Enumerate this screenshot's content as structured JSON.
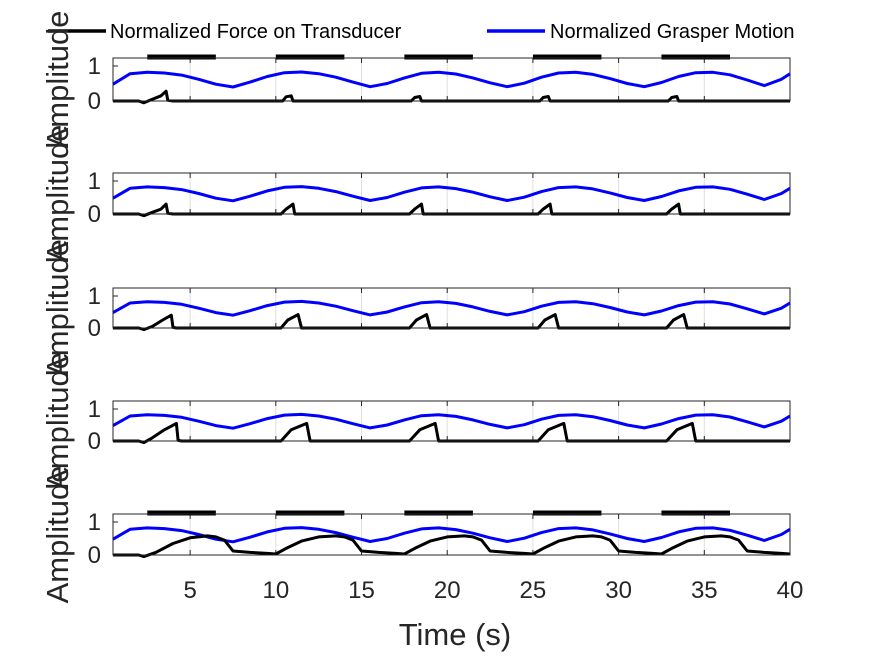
{
  "chart_data": {
    "type": "line",
    "layout": "5 stacked subplots sharing the x axis",
    "xlabel": "Time (s)",
    "xlim": [
      0.5,
      40
    ],
    "xticks": [
      5,
      10,
      15,
      20,
      25,
      30,
      35,
      40
    ],
    "grid": "vertical only",
    "legend": {
      "placement": "top",
      "entries": [
        {
          "label": "Normalized Force on Transducer",
          "color": "#000000"
        },
        {
          "label": "Normalized Grasper Motion",
          "color": "#0000ff"
        }
      ]
    },
    "series_styles": {
      "force": {
        "name": "Normalized Force on Transducer",
        "color": "#000000"
      },
      "motion": {
        "name": "Normalized Grasper Motion",
        "color": "#0000ff"
      }
    },
    "subplots": [
      {
        "ylabel": "Amplitude",
        "ylim": [
          0,
          1
        ],
        "yticks": [
          0,
          1
        ],
        "top_markers": [
          [
            2.5,
            6.5
          ],
          [
            10,
            14
          ],
          [
            17.5,
            21.5
          ],
          [
            25,
            29
          ],
          [
            32.5,
            36.5
          ]
        ],
        "motion_series": {
          "x": [
            0.5,
            1.5,
            2.5,
            3.5,
            4.5,
            5.5,
            6.5,
            7.5,
            8.5,
            9.5,
            10.5,
            11.5,
            12.5,
            13.5,
            14.5,
            15.5,
            16.5,
            17.5,
            18.5,
            19.5,
            20.5,
            21.5,
            22.5,
            23.5,
            24.5,
            25.5,
            26.5,
            27.5,
            28.5,
            29.5,
            30.5,
            31.5,
            32.5,
            33.5,
            34.5,
            35.5,
            36.5,
            37.5,
            38.5,
            39.5,
            40
          ],
          "y": [
            0.48,
            0.78,
            0.82,
            0.8,
            0.74,
            0.62,
            0.48,
            0.4,
            0.54,
            0.7,
            0.81,
            0.83,
            0.78,
            0.68,
            0.54,
            0.41,
            0.5,
            0.66,
            0.79,
            0.82,
            0.77,
            0.66,
            0.52,
            0.41,
            0.51,
            0.68,
            0.8,
            0.82,
            0.76,
            0.64,
            0.5,
            0.41,
            0.53,
            0.7,
            0.81,
            0.82,
            0.75,
            0.6,
            0.44,
            0.62,
            0.78
          ]
        },
        "force_series": {
          "x": [
            0.5,
            2.0,
            2.3,
            2.8,
            3.3,
            3.6,
            3.7,
            4.0,
            10.4,
            10.6,
            10.9,
            11.0,
            11.2,
            17.9,
            18.1,
            18.4,
            18.5,
            18.7,
            25.4,
            25.6,
            25.9,
            26.0,
            26.2,
            32.9,
            33.1,
            33.4,
            33.5,
            33.7,
            40
          ],
          "y": [
            0,
            0,
            -0.05,
            0.05,
            0.15,
            0.28,
            0.02,
            0,
            0,
            0.12,
            0.15,
            0,
            0,
            0,
            0.1,
            0.13,
            0,
            0,
            0,
            0.1,
            0.13,
            0,
            0,
            0,
            0.1,
            0.13,
            0,
            0,
            0
          ]
        }
      },
      {
        "ylabel": "Amplitude",
        "ylim": [
          0,
          1
        ],
        "yticks": [
          0,
          1
        ],
        "top_markers": [],
        "motion_series": {
          "x": [
            0.5,
            1.5,
            2.5,
            3.5,
            4.5,
            5.5,
            6.5,
            7.5,
            8.5,
            9.5,
            10.5,
            11.5,
            12.5,
            13.5,
            14.5,
            15.5,
            16.5,
            17.5,
            18.5,
            19.5,
            20.5,
            21.5,
            22.5,
            23.5,
            24.5,
            25.5,
            26.5,
            27.5,
            28.5,
            29.5,
            30.5,
            31.5,
            32.5,
            33.5,
            34.5,
            35.5,
            36.5,
            37.5,
            38.5,
            39.5,
            40
          ],
          "y": [
            0.48,
            0.78,
            0.82,
            0.8,
            0.74,
            0.62,
            0.48,
            0.4,
            0.54,
            0.7,
            0.81,
            0.83,
            0.78,
            0.68,
            0.54,
            0.41,
            0.5,
            0.66,
            0.79,
            0.82,
            0.77,
            0.66,
            0.52,
            0.41,
            0.51,
            0.68,
            0.8,
            0.82,
            0.76,
            0.64,
            0.5,
            0.41,
            0.53,
            0.7,
            0.81,
            0.82,
            0.75,
            0.6,
            0.44,
            0.62,
            0.78
          ]
        },
        "force_series": {
          "x": [
            0.5,
            2.0,
            2.3,
            2.8,
            3.3,
            3.6,
            3.7,
            4.0,
            10.3,
            10.6,
            11.0,
            11.1,
            11.3,
            17.8,
            18.1,
            18.5,
            18.6,
            18.8,
            25.3,
            25.6,
            26.0,
            26.1,
            26.3,
            32.8,
            33.1,
            33.5,
            33.6,
            33.8,
            40
          ],
          "y": [
            0,
            0,
            -0.05,
            0.05,
            0.15,
            0.3,
            0.02,
            0,
            0,
            0.15,
            0.3,
            0,
            0,
            0,
            0.15,
            0.3,
            0,
            0,
            0,
            0.15,
            0.3,
            0,
            0,
            0,
            0.15,
            0.3,
            0,
            0,
            0
          ]
        }
      },
      {
        "ylabel": "Amplitude",
        "ylim": [
          0,
          1
        ],
        "yticks": [
          0,
          1
        ],
        "top_markers": [],
        "motion_series": {
          "x": [
            0.5,
            1.5,
            2.5,
            3.5,
            4.5,
            5.5,
            6.5,
            7.5,
            8.5,
            9.5,
            10.5,
            11.5,
            12.5,
            13.5,
            14.5,
            15.5,
            16.5,
            17.5,
            18.5,
            19.5,
            20.5,
            21.5,
            22.5,
            23.5,
            24.5,
            25.5,
            26.5,
            27.5,
            28.5,
            29.5,
            30.5,
            31.5,
            32.5,
            33.5,
            34.5,
            35.5,
            36.5,
            37.5,
            38.5,
            39.5,
            40
          ],
          "y": [
            0.48,
            0.78,
            0.82,
            0.8,
            0.74,
            0.62,
            0.48,
            0.4,
            0.54,
            0.7,
            0.81,
            0.83,
            0.78,
            0.68,
            0.54,
            0.41,
            0.5,
            0.66,
            0.79,
            0.82,
            0.77,
            0.66,
            0.52,
            0.41,
            0.51,
            0.68,
            0.8,
            0.82,
            0.76,
            0.64,
            0.5,
            0.41,
            0.53,
            0.7,
            0.81,
            0.82,
            0.75,
            0.6,
            0.44,
            0.62,
            0.78
          ]
        },
        "force_series": {
          "x": [
            0.5,
            2.0,
            2.3,
            2.8,
            3.4,
            3.9,
            4.0,
            4.2,
            10.3,
            10.7,
            11.3,
            11.5,
            11.7,
            17.8,
            18.2,
            18.8,
            19.0,
            19.2,
            25.3,
            25.7,
            26.3,
            26.5,
            26.7,
            32.8,
            33.2,
            33.8,
            34.0,
            34.2,
            40
          ],
          "y": [
            0,
            0,
            -0.05,
            0.05,
            0.25,
            0.4,
            0.02,
            0,
            0,
            0.25,
            0.42,
            0,
            0,
            0,
            0.25,
            0.42,
            0,
            0,
            0,
            0.25,
            0.42,
            0,
            0,
            0,
            0.25,
            0.42,
            0,
            0,
            0
          ]
        }
      },
      {
        "ylabel": "Amplitude",
        "ylim": [
          0,
          1
        ],
        "yticks": [
          0,
          1
        ],
        "top_markers": [],
        "motion_series": {
          "x": [
            0.5,
            1.5,
            2.5,
            3.5,
            4.5,
            5.5,
            6.5,
            7.5,
            8.5,
            9.5,
            10.5,
            11.5,
            12.5,
            13.5,
            14.5,
            15.5,
            16.5,
            17.5,
            18.5,
            19.5,
            20.5,
            21.5,
            22.5,
            23.5,
            24.5,
            25.5,
            26.5,
            27.5,
            28.5,
            29.5,
            30.5,
            31.5,
            32.5,
            33.5,
            34.5,
            35.5,
            36.5,
            37.5,
            38.5,
            39.5,
            40
          ],
          "y": [
            0.48,
            0.78,
            0.82,
            0.8,
            0.74,
            0.62,
            0.48,
            0.4,
            0.54,
            0.7,
            0.81,
            0.83,
            0.78,
            0.68,
            0.54,
            0.41,
            0.5,
            0.66,
            0.79,
            0.82,
            0.77,
            0.66,
            0.52,
            0.41,
            0.51,
            0.68,
            0.8,
            0.82,
            0.76,
            0.64,
            0.5,
            0.41,
            0.53,
            0.7,
            0.81,
            0.82,
            0.75,
            0.6,
            0.44,
            0.62,
            0.78
          ]
        },
        "force_series": {
          "x": [
            0.5,
            2.0,
            2.3,
            2.8,
            3.5,
            4.2,
            4.3,
            4.5,
            10.3,
            10.9,
            11.8,
            12.0,
            12.2,
            17.8,
            18.4,
            19.3,
            19.5,
            19.7,
            25.3,
            25.9,
            26.8,
            27.0,
            27.2,
            32.8,
            33.4,
            34.3,
            34.5,
            34.7,
            40
          ],
          "y": [
            0,
            0,
            -0.05,
            0.1,
            0.35,
            0.55,
            0.02,
            0,
            0,
            0.35,
            0.55,
            0,
            0,
            0,
            0.35,
            0.55,
            0,
            0,
            0,
            0.35,
            0.55,
            0,
            0,
            0,
            0.35,
            0.55,
            0,
            0,
            0
          ]
        }
      },
      {
        "ylabel": "Amplitude",
        "ylim": [
          0,
          1
        ],
        "yticks": [
          0,
          1
        ],
        "top_markers": [
          [
            2.5,
            6.5
          ],
          [
            10,
            14
          ],
          [
            17.5,
            21.5
          ],
          [
            25,
            29
          ],
          [
            32.5,
            36.5
          ]
        ],
        "motion_series": {
          "x": [
            0.5,
            1.5,
            2.5,
            3.5,
            4.5,
            5.5,
            6.5,
            7.5,
            8.5,
            9.5,
            10.5,
            11.5,
            12.5,
            13.5,
            14.5,
            15.5,
            16.5,
            17.5,
            18.5,
            19.5,
            20.5,
            21.5,
            22.5,
            23.5,
            24.5,
            25.5,
            26.5,
            27.5,
            28.5,
            29.5,
            30.5,
            31.5,
            32.5,
            33.5,
            34.5,
            35.5,
            36.5,
            37.5,
            38.5,
            39.5,
            40
          ],
          "y": [
            0.48,
            0.78,
            0.82,
            0.8,
            0.74,
            0.62,
            0.48,
            0.4,
            0.54,
            0.7,
            0.81,
            0.83,
            0.78,
            0.68,
            0.54,
            0.41,
            0.5,
            0.66,
            0.79,
            0.82,
            0.77,
            0.66,
            0.52,
            0.41,
            0.51,
            0.68,
            0.8,
            0.82,
            0.76,
            0.64,
            0.5,
            0.41,
            0.53,
            0.7,
            0.81,
            0.82,
            0.75,
            0.6,
            0.44,
            0.62,
            0.78
          ]
        },
        "force_series": {
          "x": [
            0.5,
            2.0,
            2.3,
            3.0,
            4.0,
            5.0,
            6.0,
            6.5,
            7.0,
            7.5,
            8.5,
            9.5,
            10.0,
            10.6,
            11.5,
            12.5,
            13.5,
            14.0,
            14.5,
            15.0,
            16.0,
            17.0,
            17.5,
            18.1,
            19.0,
            20.0,
            21.0,
            21.5,
            22.0,
            22.5,
            23.5,
            24.5,
            25.0,
            25.6,
            26.5,
            27.5,
            28.5,
            29.0,
            29.5,
            30.0,
            31.0,
            32.0,
            32.5,
            33.1,
            34.0,
            35.0,
            36.0,
            36.5,
            37.0,
            37.5,
            38.5,
            39.5,
            40
          ],
          "y": [
            0,
            0,
            -0.05,
            0.08,
            0.35,
            0.52,
            0.58,
            0.55,
            0.45,
            0.12,
            0.08,
            0.05,
            0.03,
            0.2,
            0.42,
            0.55,
            0.58,
            0.55,
            0.45,
            0.12,
            0.08,
            0.05,
            0.03,
            0.2,
            0.42,
            0.55,
            0.58,
            0.55,
            0.45,
            0.12,
            0.08,
            0.05,
            0.03,
            0.2,
            0.42,
            0.55,
            0.58,
            0.55,
            0.45,
            0.12,
            0.08,
            0.05,
            0.03,
            0.2,
            0.42,
            0.55,
            0.58,
            0.55,
            0.45,
            0.12,
            0.08,
            0.05,
            0.03
          ]
        }
      }
    ]
  }
}
